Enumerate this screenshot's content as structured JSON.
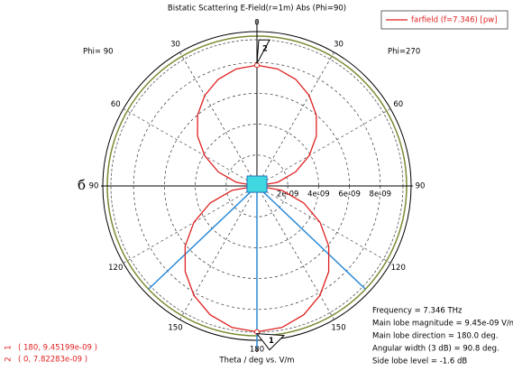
{
  "chart_data": {
    "type": "polar",
    "title": "Bistatic Scattering E-Field(r=1m) Abs (Phi=90)",
    "left_label": "Phi= 90",
    "right_label": "Phi=270",
    "axis_label": "Theta / deg vs. V/m",
    "stray_text": "б",
    "theta": [
      0,
      10,
      20,
      30,
      40,
      50,
      60,
      70,
      80,
      90,
      100,
      110,
      120,
      130,
      140,
      150,
      160,
      170,
      180,
      190,
      200,
      210,
      220,
      230,
      240,
      250,
      260,
      270,
      280,
      290,
      300,
      310,
      320,
      330,
      340,
      350
    ],
    "series": [
      {
        "name": "farfield (f=7.346) [pw]",
        "color": "#e02020",
        "values": [
          7.82e-09,
          7.7e-09,
          7.35e-09,
          6.77e-09,
          5.99e-09,
          5.03e-09,
          3.91e-09,
          2.67e-09,
          1.36e-09,
          0,
          1.64e-09,
          3.23e-09,
          4.73e-09,
          6.08e-09,
          7.24e-09,
          8.18e-09,
          8.88e-09,
          9.31e-09,
          9.45e-09,
          9.31e-09,
          8.88e-09,
          8.18e-09,
          7.24e-09,
          6.08e-09,
          4.73e-09,
          3.23e-09,
          1.64e-09,
          0,
          1.36e-09,
          2.67e-09,
          3.91e-09,
          5.03e-09,
          5.99e-09,
          6.77e-09,
          7.35e-09,
          7.7e-09
        ]
      }
    ],
    "rlim": [
      0,
      1e-08
    ],
    "rticks": [
      {
        "value": 2e-09,
        "label": "2e-09"
      },
      {
        "value": 4e-09,
        "label": "4e-09"
      },
      {
        "value": 6e-09,
        "label": "6e-09"
      },
      {
        "value": 8e-09,
        "label": "8e-09"
      }
    ],
    "thetaticks": [
      0,
      30,
      60,
      90,
      120,
      150,
      180
    ],
    "markers": [
      {
        "id": "1",
        "theta": 180,
        "value": 9.45199e-09,
        "label": "( 180, 9.45199e-09 )"
      },
      {
        "id": "2",
        "theta": 0,
        "value": 7.82283e-09,
        "label": "( 0, 7.82283e-09 )"
      }
    ],
    "info": [
      "Frequency = 7.346 THz",
      "Main lobe magnitude = 9.45e-09 V/m",
      "Main lobe direction =  180.0 deg.",
      "Angular width (3 dB) =   90.8 deg.",
      "Side lobe level =   -1.6 dB"
    ]
  }
}
